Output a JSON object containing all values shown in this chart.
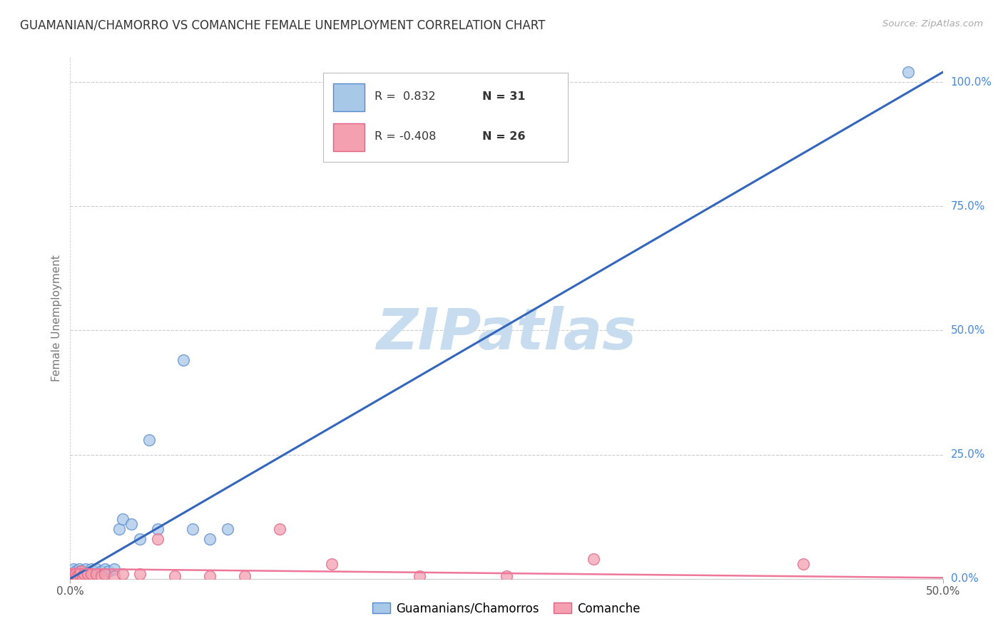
{
  "title": "GUAMANIAN/CHAMORRO VS COMANCHE FEMALE UNEMPLOYMENT CORRELATION CHART",
  "source": "Source: ZipAtlas.com",
  "ylabel": "Female Unemployment",
  "xlim": [
    0.0,
    0.5
  ],
  "ylim": [
    0.0,
    1.05
  ],
  "xtick_positions": [
    0.0,
    0.5
  ],
  "xtick_labels": [
    "0.0%",
    "50.0%"
  ],
  "ytick_vals_right": [
    0.0,
    0.25,
    0.5,
    0.75,
    1.0
  ],
  "ytick_labels_right": [
    "0.0%",
    "25.0%",
    "50.0%",
    "75.0%",
    "100.0%"
  ],
  "legend_blue_R": "R =  0.832",
  "legend_blue_N": "N = 31",
  "legend_pink_R": "R = -0.408",
  "legend_pink_N": "N = 26",
  "blue_color": "#A8C8E8",
  "pink_color": "#F4A0B0",
  "blue_edge_color": "#5588CC",
  "pink_edge_color": "#E06080",
  "blue_line_color": "#3366BB",
  "pink_line_color": "#EE7799",
  "watermark_color": "#C8DCF0",
  "grid_color": "#CCCCCC",
  "background_color": "#FFFFFF",
  "blue_scatter_x": [
    0.001,
    0.002,
    0.002,
    0.003,
    0.003,
    0.004,
    0.005,
    0.005,
    0.006,
    0.007,
    0.008,
    0.009,
    0.01,
    0.012,
    0.013,
    0.015,
    0.018,
    0.02,
    0.022,
    0.025,
    0.028,
    0.03,
    0.035,
    0.04,
    0.045,
    0.05,
    0.065,
    0.07,
    0.08,
    0.09,
    0.48
  ],
  "blue_scatter_y": [
    0.005,
    0.01,
    0.02,
    0.01,
    0.015,
    0.008,
    0.02,
    0.01,
    0.015,
    0.01,
    0.015,
    0.02,
    0.01,
    0.02,
    0.015,
    0.02,
    0.015,
    0.02,
    0.015,
    0.02,
    0.1,
    0.12,
    0.11,
    0.08,
    0.28,
    0.1,
    0.44,
    0.1,
    0.08,
    0.1,
    1.02
  ],
  "pink_scatter_x": [
    0.001,
    0.002,
    0.003,
    0.004,
    0.005,
    0.006,
    0.007,
    0.008,
    0.01,
    0.012,
    0.015,
    0.018,
    0.02,
    0.025,
    0.03,
    0.04,
    0.05,
    0.06,
    0.08,
    0.1,
    0.12,
    0.15,
    0.2,
    0.25,
    0.3,
    0.42
  ],
  "pink_scatter_y": [
    0.01,
    0.01,
    0.01,
    0.005,
    0.01,
    0.015,
    0.005,
    0.01,
    0.01,
    0.01,
    0.01,
    0.005,
    0.01,
    0.005,
    0.01,
    0.01,
    0.08,
    0.005,
    0.005,
    0.005,
    0.1,
    0.03,
    0.005,
    0.005,
    0.04,
    0.03
  ],
  "blue_line_x": [
    0.0,
    0.5
  ],
  "blue_line_y": [
    0.0,
    1.02
  ],
  "pink_line_x": [
    0.0,
    0.5
  ],
  "pink_line_y": [
    0.02,
    0.002
  ]
}
